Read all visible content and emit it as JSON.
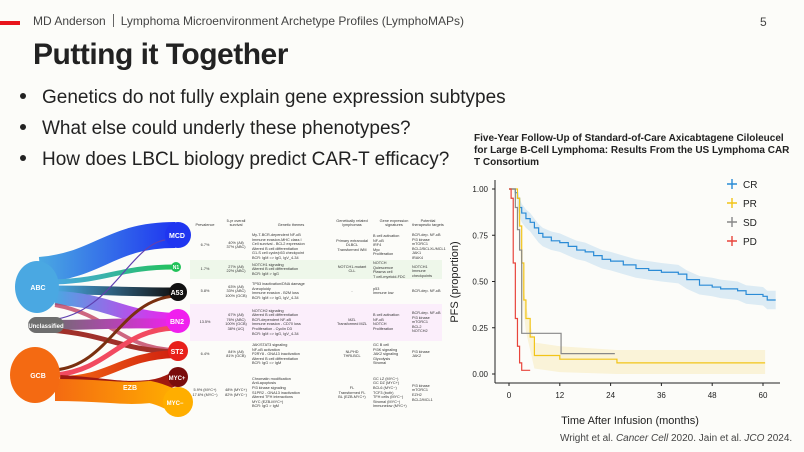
{
  "header": {
    "org": "MD Anderson",
    "project": "Lymphoma Microenvironment Archetype Profiles (LymphoMAPs)",
    "page": "5"
  },
  "title": "Putting it Together",
  "bullets": [
    "Genetics do not fully explain gene expression subtypes",
    "What else could underly these phenotypes?",
    "How does LBCL biology predict CAR-T efficacy?"
  ],
  "sankey": {
    "sources": [
      "ABC",
      "Unclassified",
      "GCB"
    ],
    "intermediate": "EZB",
    "targets": [
      "MCD",
      "N1",
      "A53",
      "BN2",
      "ST2",
      "MYC+",
      "MYC−"
    ],
    "colors": {
      "ABC": "#4aa8e2",
      "Unclassified": "#6e6e6e",
      "GCB": "#f46a12",
      "MCD": "#1f35f0",
      "N1": "#22c25a",
      "A53": "#111111",
      "BN2": "#f020ee",
      "ST2": "#e8201a",
      "MYC+": "#7a0c0c",
      "MYC−": "#ffae00"
    }
  },
  "table": {
    "headers": [
      "Prevalence",
      "5-yr overall survival",
      "Genetic themes",
      "Genetically related lymphomas",
      "Gene expression signatures",
      "Potential therapeutic targets"
    ],
    "rows": [
      {
        "prev": [
          "6.7%"
        ],
        "surv": [
          "40% (All)",
          "37% (ABC)"
        ],
        "themes": [
          "My-T-BCR-dependent NF-κB",
          "Immune evasion-MHC class I",
          "Cell survival - BCL2 expression",
          "Altered B cell differentiation",
          "G1-S cell cycle/p53 checkpoint",
          "BCR: IgM => IgG, IgV_4-34"
        ],
        "lymph": [
          "Primary extranodal",
          "DLBCL",
          "Transformed WM"
        ],
        "sig": [
          "B cell activation",
          "NF-κB",
          "IRF4",
          "Myc",
          "Proliferation"
        ],
        "targets": [
          "BCR-dep. NF-κB",
          "PI3 kinase",
          "mTORC1",
          "BCL2/BCLXL/MCL1",
          "JAK1",
          "IRAK4",
          "IRF4"
        ]
      },
      {
        "prev": [
          "1.7%"
        ],
        "surv": [
          "27% (All)",
          "22% (ABC)"
        ],
        "themes": [
          "NOTCH1 signaling",
          "Altered B cell differentiation",
          "BCR: IgM > IgG"
        ],
        "lymph": [
          "NOTCH1-mutant",
          "CLL"
        ],
        "sig": [
          "NOTCH",
          "Quiescence",
          "Plasma cell",
          "T cell-myeloid-FDC"
        ],
        "targets": [
          "NOTCH1",
          "Immune checkpoints"
        ]
      },
      {
        "prev": [
          "5.8%"
        ],
        "surv": [
          "63% (All)",
          "33% (ABC)",
          "100% (GCB)"
        ],
        "themes": [
          "TP53 inactivation/DNA damage",
          "Aneuploidy",
          "Immune evasion - B2M loss",
          "BCR: IgM => IgG, IgV_4-34"
        ],
        "lymph": [
          "-"
        ],
        "sig": [
          "p53",
          "Immune low"
        ],
        "targets": [
          "BCR-dep. NF-κB"
        ]
      },
      {
        "prev": [
          "13.5%"
        ],
        "surv": [
          "67% (All)",
          "76% (ABC)",
          "100% (GCB)",
          "38% (UC)"
        ],
        "themes": [
          "NOTCH2 signaling",
          "Altered B cell differentiation",
          "BCR-dependent NF-κB",
          "Immune evasion - CD70 loss",
          "Proliferation - Cyclin D3",
          "BCR: IgM => IgG, IgV_4-34"
        ],
        "lymph": [
          "MZL",
          "Transformed MZL"
        ],
        "sig": [
          "B cell activation",
          "NF-κB",
          "NOTCH",
          "Proliferation"
        ],
        "targets": [
          "BCR-dep. NF-κB",
          "PI3 kinase",
          "mTORC1",
          "BCL2",
          "NOTCH2"
        ]
      },
      {
        "prev": [
          "6.4%"
        ],
        "surv": [
          "84% (All)",
          "81% (GCB)"
        ],
        "themes": [
          "JAK/STAT3 signaling",
          "NF-κB activation",
          "P2RY8 - GNA13 inactivation",
          "Altered B cell differentiation",
          "BCR: IgG => IgM"
        ],
        "lymph": [
          "NLPHD",
          "THRLBCL"
        ],
        "sig": [
          "GC B cell",
          "PI3K signaling",
          "JAK2 signaling",
          "Glycolysis",
          "Stromal"
        ],
        "targets": [
          "PI3 kinase",
          "JAK2"
        ]
      },
      {
        "prev": [
          "5.9% (MYC+)",
          "17.6% (MYC−)"
        ],
        "surv": [
          "48% (MYC+)",
          "82% (MYC−)"
        ],
        "themes": [
          "Chromatin modification",
          "Anti-apoptosis",
          "PI3 kinase signaling",
          "S1PR2 - GNA13 inactivation",
          "Altered TFH interactions",
          "MYC (EZB-MYC+)",
          "BCR: IgG > IgM"
        ],
        "lymph": [
          "FL",
          "Transformed FL",
          "BL (EZB-MYC+)"
        ],
        "sig": [
          "GC LZ (MYC−)",
          "GC DZ (MYC+)",
          "BCL6 (MYC−)",
          "TCF3 (both)",
          "TFH cells (MYC−)",
          "Stromal (MYC−)",
          "Immunelow (MYC+)"
        ],
        "targets": [
          "PI3 kinase",
          "mTORC1",
          "EZH2",
          "BCL2/MCL1"
        ]
      }
    ]
  },
  "chart_data": {
    "type": "line",
    "title": "Five-Year Follow-Up of Standard-of-Care Axicabtagene Ciloleucel for Large B-Cell Lymphoma: Results From the US Lymphoma CAR T Consortium",
    "xlabel": "Time After Infusion (months)",
    "ylabel": "PFS (proportion)",
    "xlim": [
      0,
      64
    ],
    "ylim": [
      0,
      1
    ],
    "xticks": [
      0,
      12,
      24,
      36,
      48,
      60
    ],
    "yticks": [
      "0.00",
      "0.25",
      "0.50",
      "0.75",
      "1.00"
    ],
    "legend": "top-right",
    "series": [
      {
        "name": "CR",
        "color": "#2a8bd6",
        "ci": 0.05,
        "x": [
          0,
          1,
          1.5,
          2,
          2.5,
          3,
          4,
          5,
          6,
          7,
          8,
          10,
          12,
          14,
          16,
          18,
          20,
          22,
          24,
          27,
          30,
          33,
          36,
          40,
          42,
          45,
          48,
          50,
          54,
          56,
          60,
          61,
          63
        ],
        "y": [
          1,
          1,
          0.98,
          0.95,
          0.9,
          0.87,
          0.84,
          0.82,
          0.79,
          0.76,
          0.74,
          0.72,
          0.71,
          0.69,
          0.67,
          0.66,
          0.64,
          0.62,
          0.61,
          0.59,
          0.57,
          0.56,
          0.55,
          0.54,
          0.51,
          0.48,
          0.47,
          0.46,
          0.45,
          0.43,
          0.42,
          0.4,
          0.4
        ]
      },
      {
        "name": "PR",
        "color": "#f2c418",
        "ci": 0.07,
        "x": [
          0,
          1,
          2,
          2.5,
          3,
          3.5,
          4,
          5,
          6,
          12,
          25.5,
          60.5
        ],
        "y": [
          1,
          1,
          0.95,
          0.8,
          0.6,
          0.4,
          0.3,
          0.2,
          0.1,
          0.08,
          0.06,
          0.06
        ]
      },
      {
        "name": "SD",
        "color": "#888888",
        "ci": 0,
        "x": [
          0,
          1,
          1.5,
          2,
          2.5,
          3,
          12.3,
          25
        ],
        "y": [
          1,
          1,
          0.9,
          0.78,
          0.67,
          0.22,
          0.11,
          0.11
        ]
      },
      {
        "name": "PD",
        "color": "#e8453c",
        "ci": 0,
        "x": [
          0,
          0.5,
          1,
          1.5,
          2,
          2.5,
          3,
          5
        ],
        "y": [
          1,
          0.95,
          0.6,
          0.3,
          0.15,
          0.06,
          0.02,
          0.02
        ]
      }
    ]
  },
  "citation": {
    "a": "Wright et al. ",
    "a_journal": "Cancer Cell",
    "a_year": " 2020. Jain et al. ",
    "b_journal": "JCO",
    "b_year": " 2024."
  }
}
